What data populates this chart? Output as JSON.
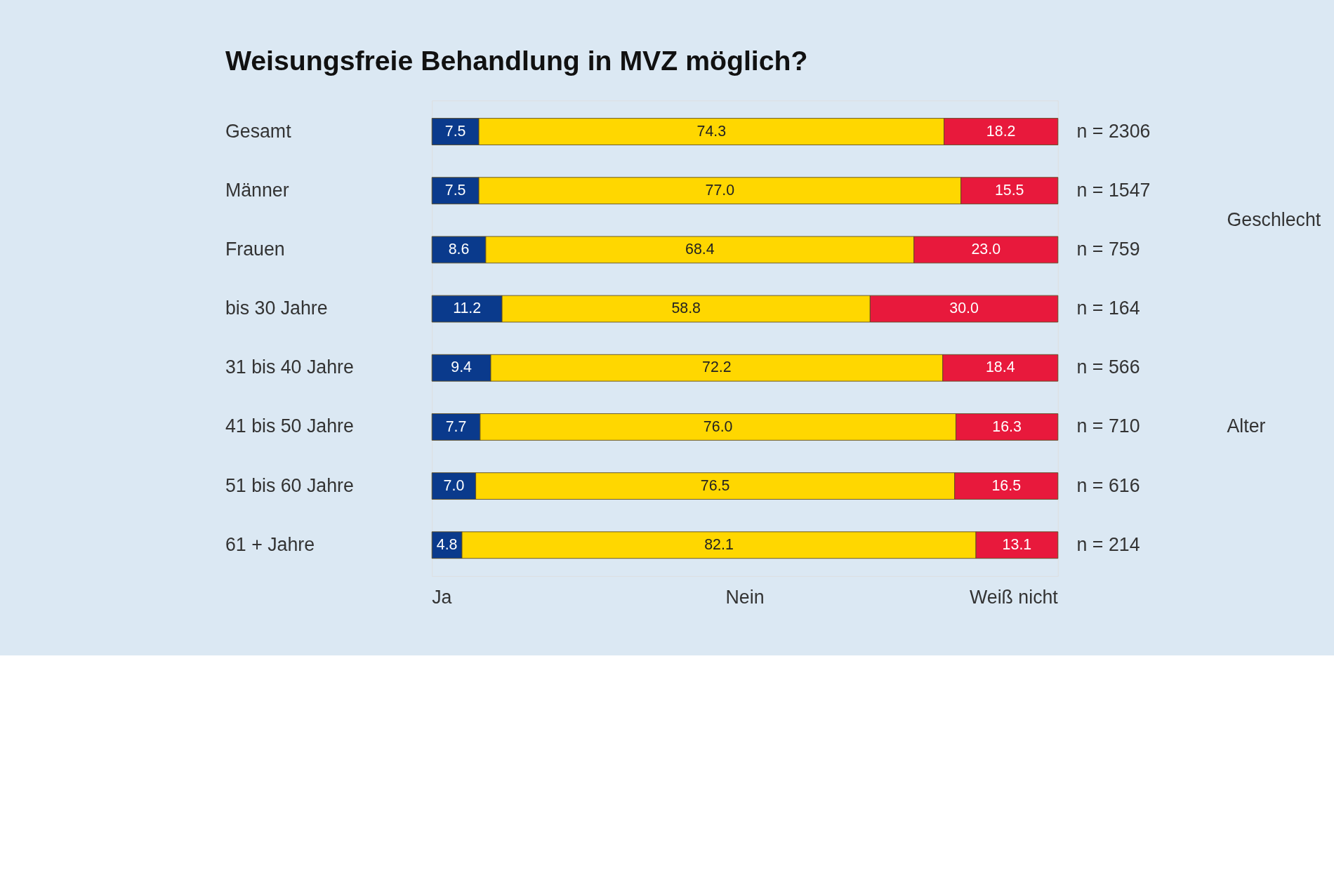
{
  "chart_data": {
    "type": "bar",
    "orientation": "horizontal",
    "stacked": true,
    "title": "Weisungsfreie Behandlung in MVZ möglich?",
    "categories": [
      "Gesamt",
      "Männer",
      "Frauen",
      "bis 30 Jahre",
      "31 bis 40 Jahre",
      "41 bis 50 Jahre",
      "51 bis 60 Jahre",
      "61 + Jahre"
    ],
    "series": [
      {
        "name": "Ja",
        "color": "#0a3a8c",
        "values": [
          7.5,
          7.5,
          8.6,
          11.2,
          9.4,
          7.7,
          7.0,
          4.8
        ],
        "value_labels": [
          "7.5",
          "7.5",
          "8.6",
          "11.2",
          "9.4",
          "7.7",
          "7.0",
          "4.8"
        ]
      },
      {
        "name": "Nein",
        "color": "#ffd700",
        "values": [
          74.3,
          77.0,
          68.4,
          58.8,
          72.2,
          76.0,
          76.5,
          82.1
        ],
        "value_labels": [
          "74.3",
          "77.0",
          "68.4",
          "58.8",
          "72.2",
          "76.0",
          "76.5",
          "82.1"
        ]
      },
      {
        "name": "Weiß nicht",
        "color": "#e8193c",
        "values": [
          18.2,
          15.5,
          23.0,
          30.0,
          18.4,
          16.3,
          16.5,
          13.1
        ],
        "value_labels": [
          "18.2",
          "15.5",
          "23.0",
          "30.0",
          "18.4",
          "16.3",
          "16.5",
          "13.1"
        ]
      }
    ],
    "xlim": [
      0,
      100
    ],
    "tick_labels": "y",
    "legend": "bottom",
    "grid": false,
    "annotations": [
      "n = 2306",
      "n = 1547",
      "n = 759",
      "n = 164",
      "n = 566",
      "n = 710",
      "n = 616",
      "n = 214",
      "Geschlecht",
      "Alter"
    ]
  }
}
